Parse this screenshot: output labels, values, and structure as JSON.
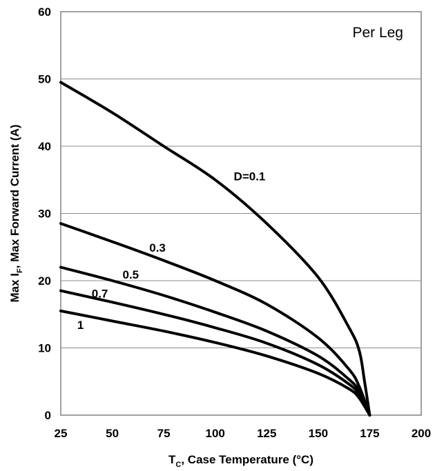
{
  "chart_data": {
    "type": "line",
    "title": "",
    "annotation": "Per Leg",
    "xlabel": {
      "main": "T",
      "sub": "C",
      "rest": ", Case Temperature (°C)"
    },
    "ylabel": {
      "main": "Max I",
      "sub": "F",
      "rest": ", Max Forward Current (A)"
    },
    "xlim": [
      25,
      200
    ],
    "ylim": [
      0,
      60
    ],
    "xticks": [
      25,
      50,
      75,
      100,
      125,
      150,
      175,
      200
    ],
    "yticks": [
      0,
      10,
      20,
      30,
      40,
      50,
      60
    ],
    "grid": {
      "horizontal": true,
      "vertical": false
    },
    "series": [
      {
        "name": "D=0.1",
        "label_at": [
          109,
          34.9
        ],
        "points": [
          [
            25,
            49.5
          ],
          [
            50,
            45
          ],
          [
            75,
            40
          ],
          [
            100,
            35
          ],
          [
            125,
            28.5
          ],
          [
            150,
            20.5
          ],
          [
            165,
            13
          ],
          [
            170,
            9.5
          ],
          [
            172.5,
            5
          ],
          [
            175,
            0
          ]
        ]
      },
      {
        "name": "0.3",
        "label_at": [
          68,
          24.3
        ],
        "points": [
          [
            25,
            28.5
          ],
          [
            50,
            25.8
          ],
          [
            75,
            23
          ],
          [
            100,
            20
          ],
          [
            125,
            16.5
          ],
          [
            150,
            11.5
          ],
          [
            165,
            6.8
          ],
          [
            170,
            4.2
          ],
          [
            175,
            0
          ]
        ]
      },
      {
        "name": "0.5",
        "label_at": [
          55,
          20.3
        ],
        "points": [
          [
            25,
            22
          ],
          [
            50,
            20
          ],
          [
            75,
            17.8
          ],
          [
            100,
            15.3
          ],
          [
            125,
            12.5
          ],
          [
            150,
            8.8
          ],
          [
            165,
            5.3
          ],
          [
            170,
            3.5
          ],
          [
            175,
            0
          ]
        ]
      },
      {
        "name": "0.7",
        "label_at": [
          40,
          17.5
        ],
        "points": [
          [
            25,
            18.5
          ],
          [
            50,
            16.8
          ],
          [
            75,
            15
          ],
          [
            100,
            13
          ],
          [
            125,
            10.7
          ],
          [
            150,
            7.5
          ],
          [
            165,
            4.6
          ],
          [
            170,
            3
          ],
          [
            175,
            0
          ]
        ]
      },
      {
        "name": "1",
        "label_at": [
          33,
          12.8
        ],
        "points": [
          [
            25,
            15.5
          ],
          [
            50,
            14
          ],
          [
            75,
            12.5
          ],
          [
            100,
            10.8
          ],
          [
            125,
            8.8
          ],
          [
            150,
            6.2
          ],
          [
            165,
            3.9
          ],
          [
            170,
            2.5
          ],
          [
            175,
            0
          ]
        ]
      }
    ]
  }
}
